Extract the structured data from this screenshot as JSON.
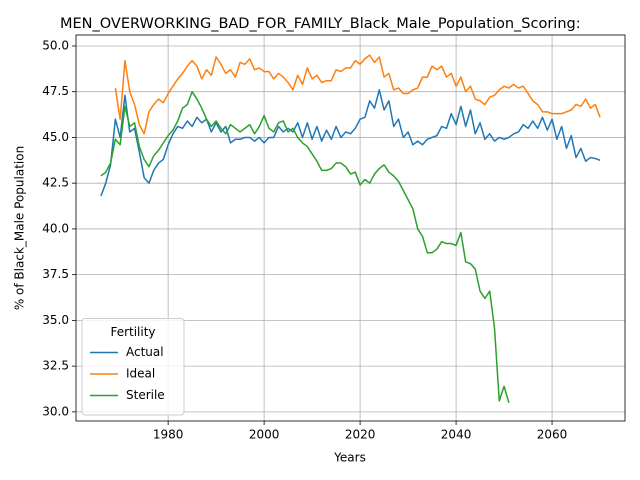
{
  "chart_data": {
    "type": "line",
    "title": "MEN_OVERWORKING_BAD_FOR_FAMILY_Black_Male_Population_Scoring:",
    "x_label": "Years",
    "y_label": "% of Black_Male Population",
    "legend_title": "Fertility",
    "legend_loc": "lower left",
    "grid": true,
    "xlim": [
      1960.8,
      2075.2
    ],
    "ylim": [
      29.5,
      50.6
    ],
    "xticks": [
      1980,
      2000,
      2020,
      2040,
      2060
    ],
    "yticks": [
      {
        "value": 30,
        "label": "30.0"
      },
      {
        "value": 32.5,
        "label": "32.5"
      },
      {
        "value": 35,
        "label": "35.0"
      },
      {
        "value": 37.5,
        "label": "37.5"
      },
      {
        "value": 40,
        "label": "40.0"
      },
      {
        "value": 42.5,
        "label": "42.5"
      },
      {
        "value": 45,
        "label": "45.0"
      },
      {
        "value": 47.5,
        "label": "47.5"
      },
      {
        "value": 50,
        "label": "50.0"
      }
    ],
    "x": [
      1966,
      1967,
      1968,
      1969,
      1970,
      1971,
      1972,
      1973,
      1974,
      1975,
      1976,
      1977,
      1978,
      1979,
      1980,
      1981,
      1982,
      1983,
      1984,
      1985,
      1986,
      1987,
      1988,
      1989,
      1990,
      1991,
      1992,
      1993,
      1994,
      1995,
      1996,
      1997,
      1998,
      1999,
      2000,
      2001,
      2002,
      2003,
      2004,
      2005,
      2006,
      2007,
      2008,
      2009,
      2010,
      2011,
      2012,
      2013,
      2014,
      2015,
      2016,
      2017,
      2018,
      2019,
      2020,
      2021,
      2022,
      2023,
      2024,
      2025,
      2026,
      2027,
      2028,
      2029,
      2030,
      2031,
      2032,
      2033,
      2034,
      2035,
      2036,
      2037,
      2038,
      2039,
      2040,
      2041,
      2042,
      2043,
      2044,
      2045,
      2046,
      2047,
      2048,
      2049,
      2050,
      2051,
      2052,
      2053,
      2054,
      2055,
      2056,
      2057,
      2058,
      2059,
      2060,
      2061,
      2062,
      2063,
      2064,
      2065,
      2066,
      2067,
      2068,
      2069,
      2070
    ],
    "series": [
      {
        "name": "Actual",
        "color": "#1f77b4",
        "values": [
          41.8,
          42.5,
          43.5,
          46.0,
          45.0,
          47.3,
          45.3,
          45.5,
          44.2,
          42.8,
          42.5,
          43.2,
          43.6,
          43.8,
          44.6,
          45.2,
          45.6,
          45.5,
          45.9,
          45.6,
          46.1,
          45.8,
          46.0,
          45.3,
          45.8,
          45.3,
          45.6,
          44.7,
          44.9,
          44.9,
          45.0,
          45.0,
          44.8,
          45.0,
          44.7,
          45.0,
          45.0,
          45.6,
          45.3,
          45.5,
          45.3,
          45.8,
          45.0,
          45.8,
          44.9,
          45.6,
          44.8,
          45.4,
          44.9,
          45.6,
          45.0,
          45.3,
          45.2,
          45.5,
          46.0,
          46.1,
          47.0,
          46.6,
          47.6,
          46.5,
          47.0,
          45.6,
          46.0,
          45.0,
          45.3,
          44.6,
          44.8,
          44.6,
          44.9,
          45.0,
          45.1,
          45.6,
          45.5,
          46.3,
          45.7,
          46.7,
          45.6,
          46.5,
          45.2,
          45.8,
          44.9,
          45.2,
          44.8,
          45.0,
          44.9,
          45.0,
          45.2,
          45.3,
          45.7,
          45.5,
          45.9,
          45.5,
          46.1,
          45.4,
          46.0,
          44.9,
          45.6,
          44.4,
          45.1,
          43.9,
          44.4,
          43.7,
          43.9,
          43.85,
          43.75
        ]
      },
      {
        "name": "Ideal",
        "color": "#ff7f0e",
        "values": [
          null,
          null,
          null,
          47.7,
          46.0,
          49.2,
          47.5,
          46.8,
          45.7,
          45.2,
          46.4,
          46.8,
          47.1,
          46.9,
          47.4,
          47.8,
          48.2,
          48.5,
          48.9,
          49.2,
          48.9,
          48.2,
          48.7,
          48.4,
          49.4,
          49.0,
          48.5,
          48.7,
          48.3,
          49.1,
          49.0,
          49.3,
          48.7,
          48.8,
          48.6,
          48.6,
          48.2,
          48.5,
          48.3,
          48.0,
          47.6,
          48.4,
          47.9,
          48.8,
          48.2,
          48.4,
          48.0,
          48.1,
          48.1,
          48.7,
          48.6,
          48.8,
          48.8,
          49.2,
          49.0,
          49.3,
          49.5,
          49.1,
          49.4,
          48.3,
          48.5,
          47.6,
          47.7,
          47.4,
          47.4,
          47.6,
          47.7,
          48.3,
          48.3,
          48.9,
          48.7,
          48.9,
          48.3,
          48.5,
          47.8,
          48.3,
          47.5,
          47.8,
          47.1,
          47.0,
          46.8,
          47.2,
          47.3,
          47.6,
          47.8,
          47.7,
          47.9,
          47.7,
          47.8,
          47.4,
          47.0,
          46.8,
          46.4,
          46.4,
          46.3,
          46.3,
          46.3,
          46.4,
          46.5,
          46.8,
          46.7,
          47.1,
          46.6,
          46.8,
          46.1
        ]
      },
      {
        "name": "Sterile",
        "color": "#2ca02c",
        "values": [
          42.9,
          43.1,
          43.6,
          44.9,
          44.6,
          46.7,
          45.6,
          45.8,
          44.5,
          43.8,
          43.4,
          44.0,
          44.3,
          44.7,
          45.1,
          45.4,
          45.9,
          46.6,
          46.8,
          47.5,
          47.1,
          46.6,
          46.0,
          45.6,
          45.9,
          45.5,
          45.2,
          45.7,
          45.5,
          45.3,
          45.5,
          45.7,
          45.2,
          45.6,
          46.2,
          45.5,
          45.3,
          45.8,
          45.9,
          45.3,
          45.5,
          45.0,
          44.7,
          44.5,
          44.1,
          43.7,
          43.2,
          43.2,
          43.3,
          43.6,
          43.6,
          43.4,
          43.0,
          43.1,
          42.4,
          42.7,
          42.5,
          43.0,
          43.3,
          43.5,
          43.1,
          42.9,
          42.6,
          42.1,
          41.6,
          41.1,
          40.0,
          39.6,
          38.7,
          38.7,
          38.9,
          39.3,
          39.2,
          39.2,
          39.1,
          39.8,
          38.2,
          38.1,
          37.8,
          36.6,
          36.2,
          36.6,
          34.6,
          30.6,
          31.4,
          30.5,
          null,
          null,
          null,
          null,
          null,
          null,
          null,
          null,
          null,
          null,
          null,
          null,
          null,
          null,
          null,
          null,
          null,
          null,
          null
        ]
      }
    ]
  }
}
